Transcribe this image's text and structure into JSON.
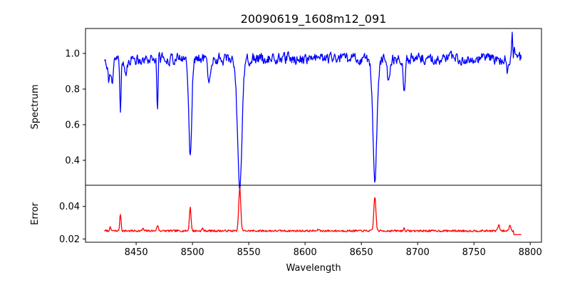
{
  "chart_data": {
    "type": "line",
    "title": "20090619_1608m12_091",
    "xlabel": "Wavelength",
    "xlim": [
      8405,
      8810
    ],
    "xticks": [
      8450,
      8500,
      8550,
      8600,
      8650,
      8700,
      8750,
      8800
    ],
    "grid": false,
    "panels": [
      {
        "name": "spectrum",
        "ylabel": "Spectrum",
        "ylim": [
          0.26,
          1.14
        ],
        "yticks": [
          0.4,
          0.6,
          0.8,
          1.0
        ],
        "ytick_labels": [
          "0.4",
          "0.6",
          "0.8",
          "1.0"
        ],
        "color": "#0000ff",
        "series": {
          "name": "Spectrum",
          "x_start": 8422,
          "x_end": 8792,
          "num_points": 740,
          "baseline": 0.97,
          "noise_amplitude": 0.05,
          "absorption_lines": [
            {
              "center": 8426,
              "depth": 0.12,
              "width": 1.0
            },
            {
              "center": 8429,
              "depth": 0.15,
              "width": 0.8
            },
            {
              "center": 8436,
              "depth": 0.28,
              "width": 0.6
            },
            {
              "center": 8441,
              "depth": 0.12,
              "width": 1.0
            },
            {
              "center": 8469,
              "depth": 0.27,
              "width": 0.6
            },
            {
              "center": 8498,
              "depth": 0.53,
              "width": 1.3
            },
            {
              "center": 8515,
              "depth": 0.14,
              "width": 1.2
            },
            {
              "center": 8542,
              "depth": 0.71,
              "width": 2.0
            },
            {
              "center": 8662,
              "depth": 0.67,
              "width": 1.8
            },
            {
              "center": 8674,
              "depth": 0.12,
              "width": 1.2
            },
            {
              "center": 8688,
              "depth": 0.18,
              "width": 0.8
            },
            {
              "center": 8780,
              "depth": 0.08,
              "width": 1.0
            }
          ],
          "emission_spikes": [
            {
              "center": 8470,
              "height": 0.1
            },
            {
              "center": 8784,
              "height": 0.13
            },
            {
              "center": 8786,
              "height": 0.08
            }
          ]
        }
      },
      {
        "name": "error",
        "ylabel": "Error",
        "ylim": [
          0.018,
          0.053
        ],
        "yticks": [
          0.02,
          0.04
        ],
        "ytick_labels": [
          "0.02",
          "0.04"
        ],
        "color": "#ff0000",
        "series": {
          "name": "Error",
          "x_start": 8422,
          "x_end": 8792,
          "num_points": 740,
          "baseline": 0.025,
          "noise_amplitude": 0.0006,
          "peaks": [
            {
              "center": 8436,
              "height": 0.0105,
              "width": 0.6
            },
            {
              "center": 8498,
              "height": 0.0148,
              "width": 0.7
            },
            {
              "center": 8542,
              "height": 0.0265,
              "width": 0.9
            },
            {
              "center": 8662,
              "height": 0.0212,
              "width": 0.9
            },
            {
              "center": 8427,
              "height": 0.002,
              "width": 0.6
            },
            {
              "center": 8456,
              "height": 0.0015,
              "width": 0.6
            },
            {
              "center": 8469,
              "height": 0.003,
              "width": 0.8
            },
            {
              "center": 8509,
              "height": 0.0015,
              "width": 0.6
            },
            {
              "center": 8612,
              "height": 0.001,
              "width": 0.6
            },
            {
              "center": 8688,
              "height": 0.0015,
              "width": 0.6
            },
            {
              "center": 8772,
              "height": 0.0035,
              "width": 0.8
            },
            {
              "center": 8782,
              "height": 0.0035,
              "width": 0.8
            }
          ],
          "end_segment": {
            "x_from": 8785,
            "value": 0.0227
          }
        }
      }
    ]
  }
}
